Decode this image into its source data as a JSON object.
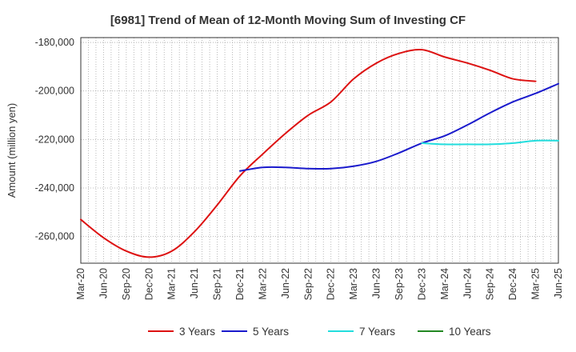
{
  "chart_data": {
    "type": "line",
    "title": "[6981]  Trend of Mean of 12-Month Moving Sum of Investing CF",
    "xlabel": "",
    "ylabel": "Amount (million yen)",
    "ylim": [
      -271000,
      -178000
    ],
    "yticks": [
      -180000,
      -200000,
      -220000,
      -240000,
      -260000
    ],
    "ytick_labels": [
      "-180,000",
      "-200,000",
      "-220,000",
      "-240,000",
      "-260,000"
    ],
    "x_categories": [
      "Mar-20",
      "Jun-20",
      "Sep-20",
      "Dec-20",
      "Mar-21",
      "Jun-21",
      "Sep-21",
      "Dec-21",
      "Mar-22",
      "Jun-22",
      "Sep-22",
      "Dec-22",
      "Mar-23",
      "Jun-23",
      "Sep-23",
      "Dec-23",
      "Mar-24",
      "Jun-24",
      "Sep-24",
      "Dec-24",
      "Mar-25",
      "Jun-25"
    ],
    "grid": true,
    "legend_position": "bottom",
    "series": [
      {
        "name": "3 Years",
        "color": "#dd1111",
        "start_index": 0,
        "values": [
          -253000,
          -260500,
          -266000,
          -268500,
          -266000,
          -258000,
          -247000,
          -235000,
          -226000,
          -217500,
          -210000,
          -204500,
          -195000,
          -188500,
          -184500,
          -183000,
          -186000,
          -188500,
          -191500,
          -195000,
          -196000
        ]
      },
      {
        "name": "5 Years",
        "color": "#1a1acc",
        "start_index": 7,
        "values": [
          -233000,
          -231500,
          -231500,
          -232000,
          -232000,
          -231000,
          -229000,
          -225500,
          -221500,
          -218500,
          -214000,
          -209000,
          -204500,
          -201000,
          -197000
        ]
      },
      {
        "name": "7 Years",
        "color": "#22dddd",
        "start_index": 15,
        "values": [
          -221500,
          -222000,
          -222000,
          -222000,
          -221500,
          -220500,
          -220500
        ]
      },
      {
        "name": "10 Years",
        "color": "#228822",
        "start_index": 0,
        "values": []
      }
    ]
  }
}
